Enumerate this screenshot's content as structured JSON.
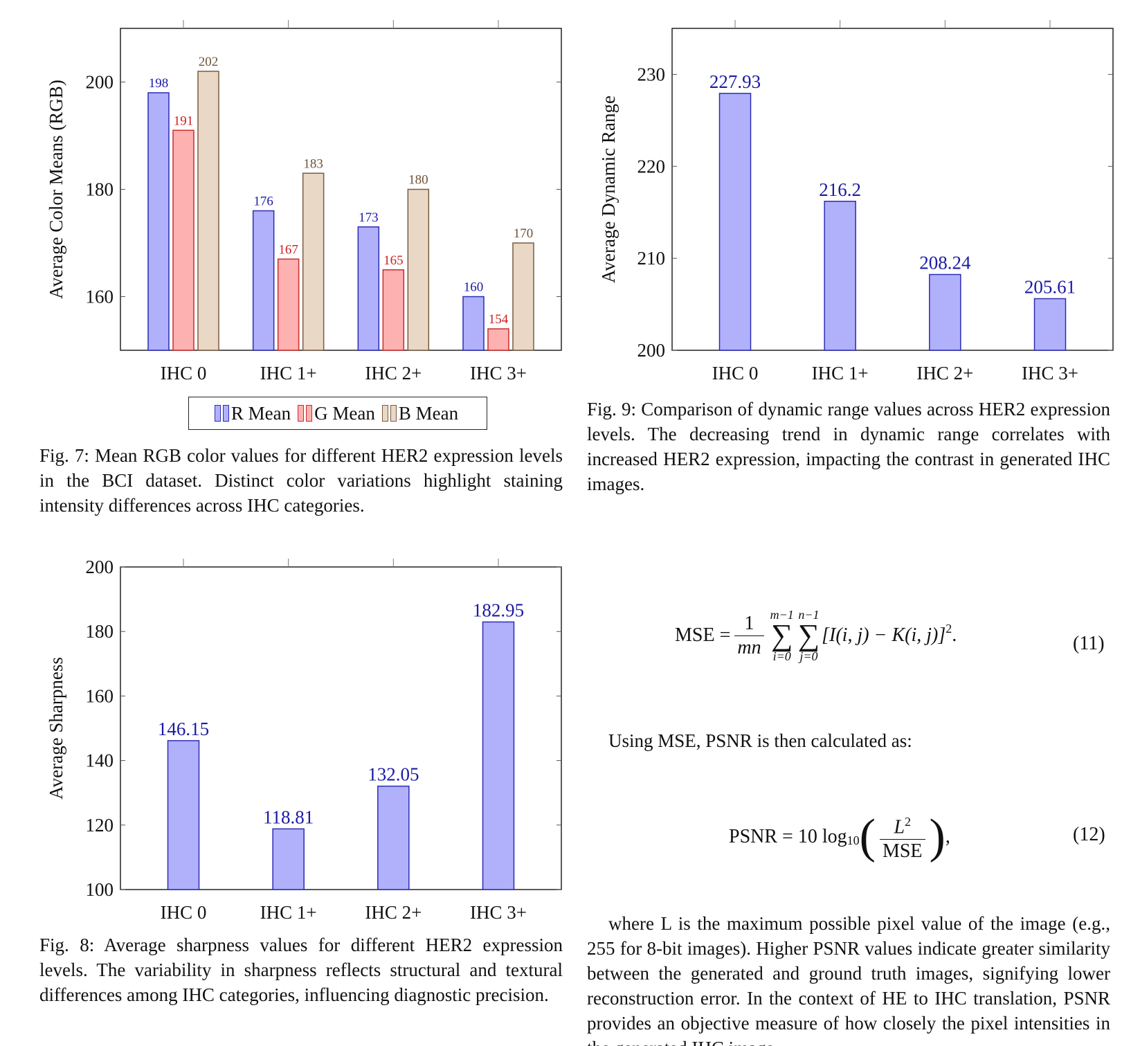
{
  "colors": {
    "r_fill": "#b1b1fb",
    "r_stroke": "#2b2bb8",
    "r_label": "#1a1aa6",
    "g_fill": "#fdb1b1",
    "g_stroke": "#cc2b2b",
    "g_label": "#cc1f1f",
    "b_fill": "#e8d8c5",
    "b_stroke": "#7a5a40",
    "b_label": "#6e5236"
  },
  "chart_data": [
    {
      "id": "fig7",
      "type": "bar",
      "categories": [
        "IHC 0",
        "IHC 1+",
        "IHC 2+",
        "IHC 3+"
      ],
      "series": [
        {
          "name": "R Mean",
          "values": [
            198,
            176,
            173,
            160
          ]
        },
        {
          "name": "G Mean",
          "values": [
            191,
            167,
            165,
            154
          ]
        },
        {
          "name": "B Mean",
          "values": [
            202,
            183,
            180,
            170
          ]
        }
      ],
      "ylabel": "Average Color Means (RGB)",
      "ylim": [
        150,
        210
      ],
      "yticks": [
        160,
        180,
        200
      ],
      "legend": "bottom"
    },
    {
      "id": "fig9",
      "type": "bar",
      "categories": [
        "IHC 0",
        "IHC 1+",
        "IHC 2+",
        "IHC 3+"
      ],
      "series": [
        {
          "values": [
            227.93,
            216.2,
            208.24,
            205.61
          ]
        }
      ],
      "ylabel": "Average Dynamic Range",
      "ylim": [
        200,
        235
      ],
      "yticks": [
        200,
        210,
        220,
        230
      ]
    },
    {
      "id": "fig8",
      "type": "bar",
      "categories": [
        "IHC 0",
        "IHC 1+",
        "IHC 2+",
        "IHC 3+"
      ],
      "series": [
        {
          "values": [
            146.15,
            118.81,
            132.05,
            182.95
          ]
        }
      ],
      "ylabel": "Average Sharpness",
      "ylim": [
        100,
        200
      ],
      "yticks": [
        100,
        120,
        140,
        160,
        180,
        200
      ]
    }
  ],
  "legend": {
    "r": "R Mean",
    "g": "G Mean",
    "b": "B Mean"
  },
  "captions": {
    "fig7": "Fig. 7: Mean RGB color values for different HER2 expression levels in the BCI dataset. Distinct color variations highlight staining intensity differences across IHC categories.",
    "fig9": "Fig. 9: Comparison of dynamic range values across HER2 expression levels. The decreasing trend in dynamic range correlates with increased HER2 expression, impacting the contrast in generated IHC images.",
    "fig8": "Fig. 8: Average sharpness values for different HER2 expression levels. The variability in sharpness reflects structural and textural differences among IHC categories, influencing diagnostic precision."
  },
  "equations": {
    "mse_lhs": "MSE =",
    "mse_num": "1",
    "mse_den": "mn",
    "sum1_top": "m−1",
    "sum1_bot": "i=0",
    "sum2_top": "n−1",
    "sum2_bot": "j=0",
    "mse_body": "[I(i, j) − K(i, j)]",
    "mse_exp": "2",
    "mse_end": ".",
    "mse_number": "(11)",
    "psnr_lhs": "PSNR = 10 log",
    "psnr_sub": "10",
    "psnr_num": "L",
    "psnr_num_exp": "2",
    "psnr_den": "MSE",
    "psnr_end": ",",
    "psnr_number": "(12)"
  },
  "text": {
    "using_mse": "Using MSE, PSNR is then calculated as:",
    "where_para": "where L is the maximum possible pixel value of the image (e.g., 255 for 8-bit images). Higher PSNR values indicate greater similarity between the generated and ground truth images, signifying lower reconstruction error. In the context of HE to IHC translation, PSNR provides an objective measure of how closely the pixel intensities in the generated IHC image"
  }
}
